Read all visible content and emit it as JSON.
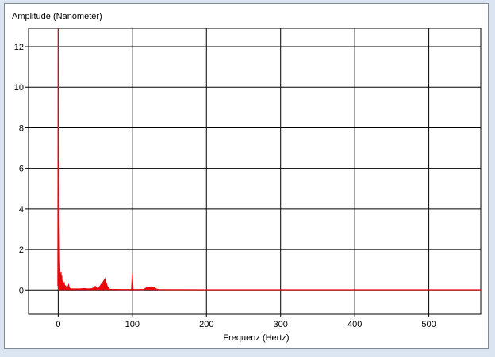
{
  "chart_data": {
    "type": "line",
    "title": "",
    "ylabel": "Amplitude (Nanometer)",
    "xlabel": "Frequenz (Hertz)",
    "xlim": [
      -40,
      570
    ],
    "ylim": [
      -1.2,
      12.9
    ],
    "x_ticks": [
      0,
      100,
      200,
      300,
      400,
      500
    ],
    "y_ticks": [
      0,
      2,
      4,
      6,
      8,
      10,
      12
    ],
    "grid": true,
    "legend": "none",
    "line_color": "#e8070c",
    "baseline": 0,
    "series": [
      {
        "points": [
          [
            -0.5,
            0.2
          ],
          [
            0,
            12.9
          ],
          [
            0.3,
            5.8
          ],
          [
            0.6,
            6.3
          ],
          [
            0.9,
            3.9
          ],
          [
            1.2,
            3.1
          ],
          [
            1.5,
            2.4
          ],
          [
            1.8,
            1.5
          ],
          [
            2.2,
            0.95
          ],
          [
            2.6,
            0.4
          ],
          [
            3,
            0.8
          ],
          [
            3.4,
            0.5
          ],
          [
            3.8,
            0.9
          ],
          [
            4.3,
            0.4
          ],
          [
            4.8,
            0.7
          ],
          [
            5.3,
            0.3
          ],
          [
            6,
            0.45
          ],
          [
            7,
            0.25
          ],
          [
            8,
            0.35
          ],
          [
            9,
            0.15
          ],
          [
            10,
            0.2
          ],
          [
            11,
            0.1
          ],
          [
            13,
            0.15
          ],
          [
            14,
            0.25
          ],
          [
            15,
            0.1
          ],
          [
            17,
            0.05
          ],
          [
            20,
            0.05
          ],
          [
            30,
            0.05
          ],
          [
            35,
            0.07
          ],
          [
            40,
            0.05
          ],
          [
            45,
            0.06
          ],
          [
            48,
            0.1
          ],
          [
            50,
            0.18
          ],
          [
            52,
            0.08
          ],
          [
            55,
            0.1
          ],
          [
            58,
            0.28
          ],
          [
            60,
            0.35
          ],
          [
            62,
            0.48
          ],
          [
            63,
            0.55
          ],
          [
            64,
            0.42
          ],
          [
            65,
            0.32
          ],
          [
            66,
            0.2
          ],
          [
            68,
            0.08
          ],
          [
            70,
            0.03
          ],
          [
            85,
            0.02
          ],
          [
            99,
            0.02
          ],
          [
            100,
            0.8
          ],
          [
            101,
            0.02
          ],
          [
            115,
            0.02
          ],
          [
            118,
            0.08
          ],
          [
            120,
            0.15
          ],
          [
            123,
            0.12
          ],
          [
            126,
            0.16
          ],
          [
            128,
            0.1
          ],
          [
            130,
            0.12
          ],
          [
            132,
            0.05
          ],
          [
            135,
            0.02
          ],
          [
            200,
            0.01
          ],
          [
            300,
            0.01
          ],
          [
            400,
            0.01
          ],
          [
            500,
            0.01
          ],
          [
            570,
            0.01
          ]
        ]
      }
    ]
  }
}
